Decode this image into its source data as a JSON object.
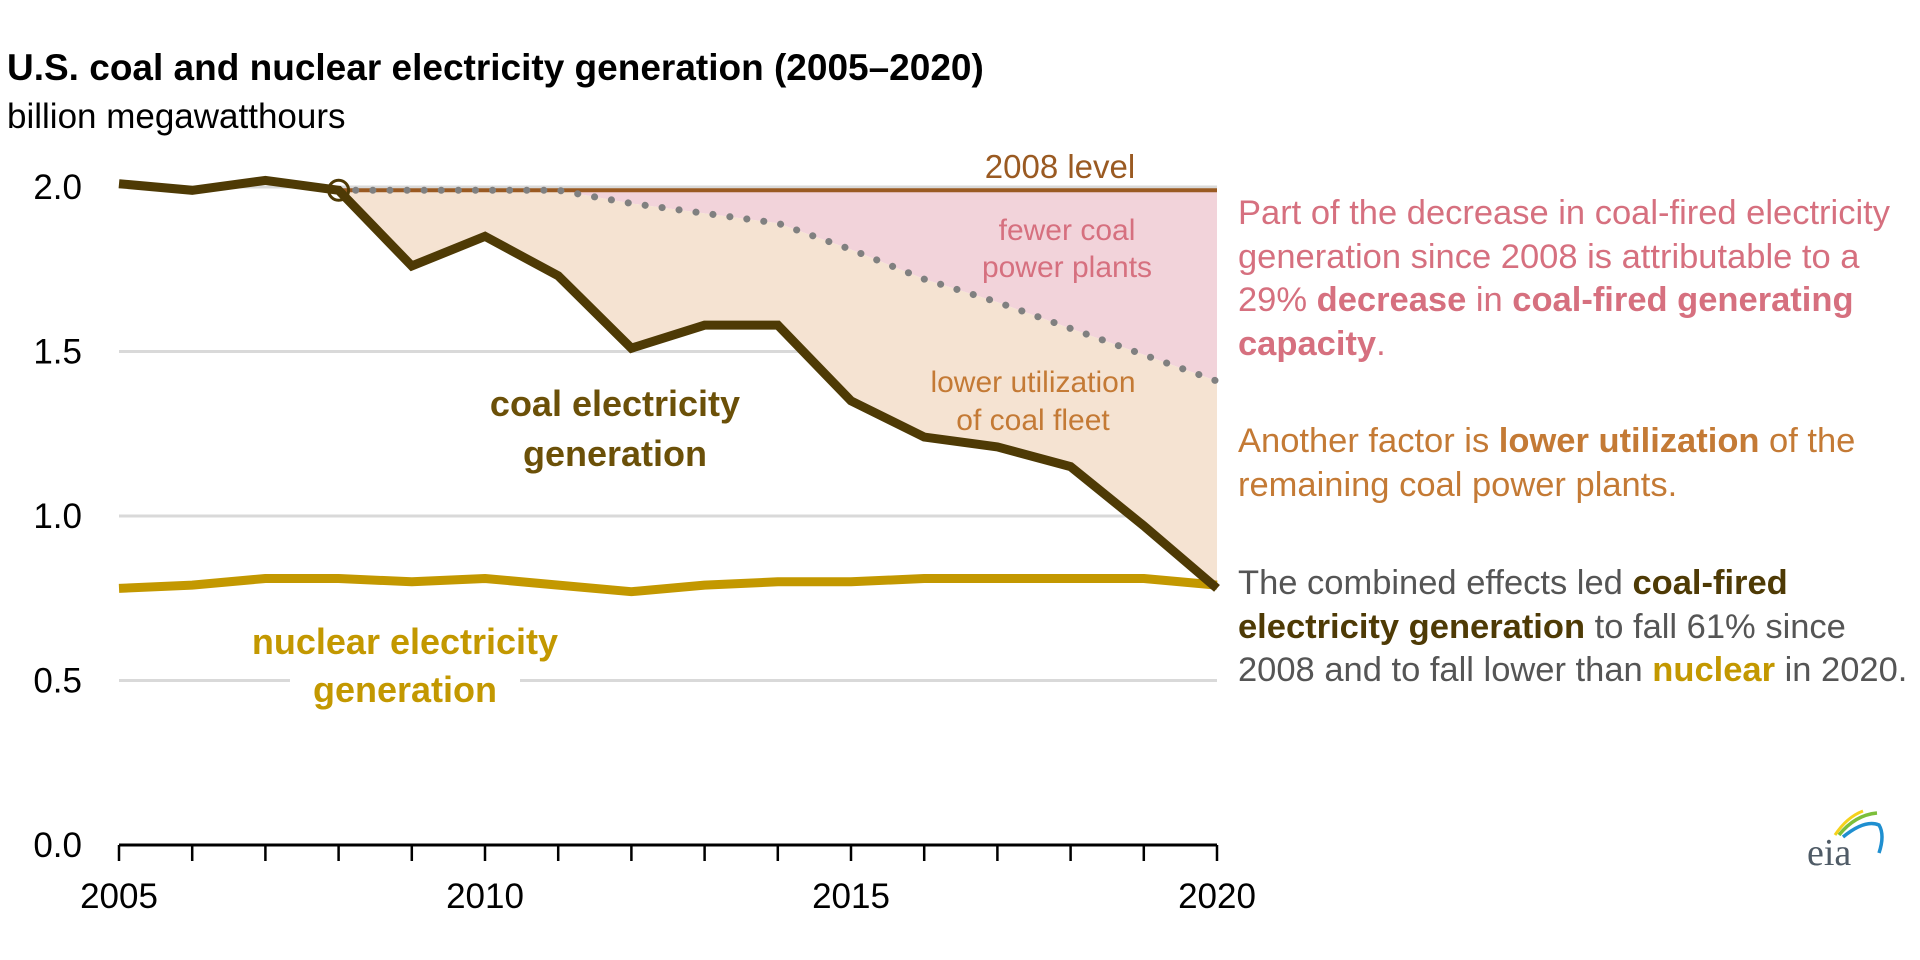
{
  "header": {
    "title": "U.S. coal and nuclear electricity generation (2005–2020)",
    "subtitle": "billion megawatthours"
  },
  "colors": {
    "coal": "#4e3a05",
    "nuclear": "#c39800",
    "level_2008": "#9a5a22",
    "capacity_dotted": "#808080",
    "fewer_plants_fill": "#f2d3da",
    "lower_util_fill": "#f5e3d2",
    "gridline": "#d9d9d9",
    "note_pink": "#d6707f",
    "note_orange": "#c47a35",
    "note_gray": "#555555"
  },
  "annotations": {
    "level_2008": "2008 level",
    "fewer_plants_1": "fewer coal",
    "fewer_plants_2": "power plants",
    "lower_util_1": "lower utilization",
    "lower_util_2": "of coal fleet",
    "coal_label_1": "coal electricity",
    "coal_label_2": "generation",
    "nuclear_label_1": "nuclear electricity",
    "nuclear_label_2": "generation"
  },
  "notes": {
    "note1": {
      "t1": "Part of the decrease in coal-fired electricity generation since 2008 is attributable to a 29% ",
      "b1": "decrease",
      "t2": " in ",
      "b2": "coal-fired generating capacity",
      "t3": "."
    },
    "note2": {
      "t1": "Another factor is ",
      "b1": "lower utilization",
      "t2": " of the remaining coal power plants."
    },
    "note3": {
      "t1": "The combined effects led ",
      "b1": "coal-fired electricity generation",
      "t2": " to fall 61% since 2008 and to fall lower than ",
      "b2": "nuclear",
      "t3": " in 2020."
    }
  },
  "logo": {
    "text": "eia"
  },
  "chart_data": {
    "type": "line",
    "title": "U.S. coal and nuclear electricity generation (2005–2020)",
    "ylabel": "billion megawatthours",
    "xlabel": "",
    "x": [
      2005,
      2006,
      2007,
      2008,
      2009,
      2010,
      2011,
      2012,
      2013,
      2014,
      2015,
      2016,
      2017,
      2018,
      2019,
      2020
    ],
    "xlim": [
      2005,
      2020
    ],
    "ylim": [
      0,
      2.0
    ],
    "x_ticks": [
      "2005",
      "2010",
      "2015",
      "2020"
    ],
    "y_ticks": [
      "0.0",
      "0.5",
      "1.0",
      "1.5",
      "2.0"
    ],
    "grid": true,
    "series": [
      {
        "name": "coal electricity generation",
        "style": "solid",
        "values": [
          2.01,
          1.99,
          2.02,
          1.99,
          1.76,
          1.85,
          1.73,
          1.51,
          1.58,
          1.58,
          1.35,
          1.24,
          1.21,
          1.15,
          0.97,
          0.78
        ]
      },
      {
        "name": "nuclear electricity generation",
        "style": "solid",
        "values": [
          0.78,
          0.79,
          0.81,
          0.81,
          0.8,
          0.81,
          0.79,
          0.77,
          0.79,
          0.8,
          0.8,
          0.81,
          0.81,
          0.81,
          0.81,
          0.79
        ]
      },
      {
        "name": "2008 level",
        "style": "solid",
        "x_from": 2008,
        "values": [
          null,
          null,
          null,
          1.99,
          1.99,
          1.99,
          1.99,
          1.99,
          1.99,
          1.99,
          1.99,
          1.99,
          1.99,
          1.99,
          1.99,
          1.99
        ]
      },
      {
        "name": "coal generation at 2008 utilization (capacity-based)",
        "style": "dotted",
        "x_from": 2008,
        "values": [
          null,
          null,
          null,
          1.99,
          1.99,
          1.99,
          1.99,
          1.95,
          1.92,
          1.89,
          1.81,
          1.72,
          1.65,
          1.57,
          1.49,
          1.41
        ]
      }
    ],
    "areas": [
      {
        "name": "fewer coal power plants",
        "between": [
          "2008 level",
          "coal generation at 2008 utilization (capacity-based)"
        ]
      },
      {
        "name": "lower utilization of coal fleet",
        "between": [
          "coal generation at 2008 utilization (capacity-based)",
          "coal electricity generation"
        ]
      }
    ],
    "marker": {
      "x": 2008,
      "y": 1.99,
      "shape": "open-circle"
    }
  }
}
